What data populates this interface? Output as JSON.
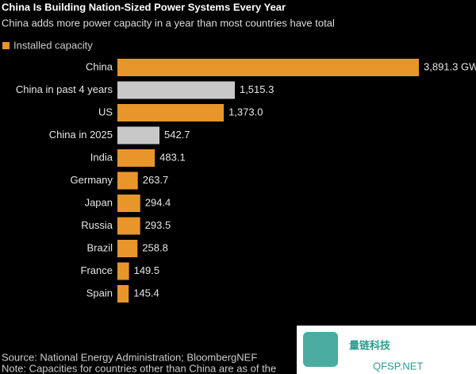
{
  "chart_data": {
    "type": "bar",
    "orientation": "horizontal",
    "title": "China Is Building Nation-Sized Power Systems Every Year",
    "subtitle": "China adds more power capacity in a year than most countries have total",
    "legend": "Installed capacity",
    "legend_color": "#e8952a",
    "categories": [
      "China",
      "China in past 4 years",
      "US",
      "China in 2025",
      "India",
      "Germany",
      "Japan",
      "Russia",
      "Brazil",
      "France",
      "Spain"
    ],
    "values": [
      3891.3,
      1515.3,
      1373.0,
      542.7,
      483.1,
      263.7,
      294.4,
      293.5,
      258.8,
      149.5,
      145.4
    ],
    "value_labels": [
      "3,891.3 GW",
      "1,515.3",
      "1,373.0",
      "542.7",
      "483.1",
      "263.7",
      "294.4",
      "293.5",
      "258.8",
      "149.5",
      "145.4"
    ],
    "colors": [
      "#e8952a",
      "#c8c8c8",
      "#e8952a",
      "#c8c8c8",
      "#e8952a",
      "#e8952a",
      "#e8952a",
      "#e8952a",
      "#e8952a",
      "#e8952a",
      "#e8952a"
    ],
    "source": "Source: National Energy Administration; BloombergNEF",
    "note": "Note: Capacities for countries other than China are as of the"
  },
  "watermark": {
    "name": "量链科技",
    "site": "QFSP.NET"
  }
}
